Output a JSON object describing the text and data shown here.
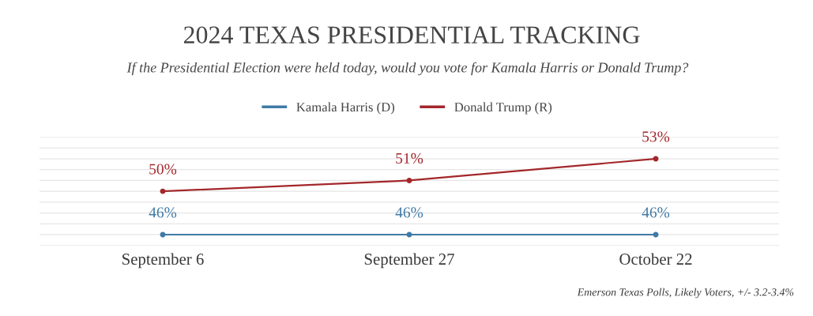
{
  "chart_data": {
    "type": "line",
    "title": "2024 TEXAS PRESIDENTIAL TRACKING",
    "subtitle": "If the Presidential Election were held today, would you vote for Kamala Harris or Donald Trump?",
    "categories": [
      "September 6",
      "September 27",
      "October 22"
    ],
    "series": [
      {
        "name": "Kamala Harris (D)",
        "color": "#3f7aa6",
        "values": [
          46,
          46,
          46
        ],
        "value_labels": [
          "46%",
          "46%",
          "46%"
        ]
      },
      {
        "name": "Donald Trump (R)",
        "color": "#a3272b",
        "values": [
          50,
          51,
          53
        ],
        "value_labels": [
          "50%",
          "51%",
          "53%"
        ]
      }
    ],
    "ylim": [
      45,
      55
    ],
    "yticks": [
      {
        "value": 45,
        "label": null
      },
      {
        "value": 46,
        "label": null
      },
      {
        "value": 47,
        "label": null
      },
      {
        "value": 48,
        "label": null
      },
      {
        "value": 49,
        "label": null
      },
      {
        "value": 50,
        "label": null
      },
      {
        "value": 51,
        "label": null
      },
      {
        "value": 52,
        "label": null
      },
      {
        "value": 53,
        "label": null
      },
      {
        "value": 54,
        "label": null
      },
      {
        "value": 55,
        "label": null
      }
    ],
    "tick_labels": "x",
    "grid": "y",
    "legend": "top",
    "marker": "circle",
    "line_style": "solid",
    "annotations": [
      "Emerson Texas Polls, Likely Voters, +/- 3.2-3.4%"
    ]
  }
}
